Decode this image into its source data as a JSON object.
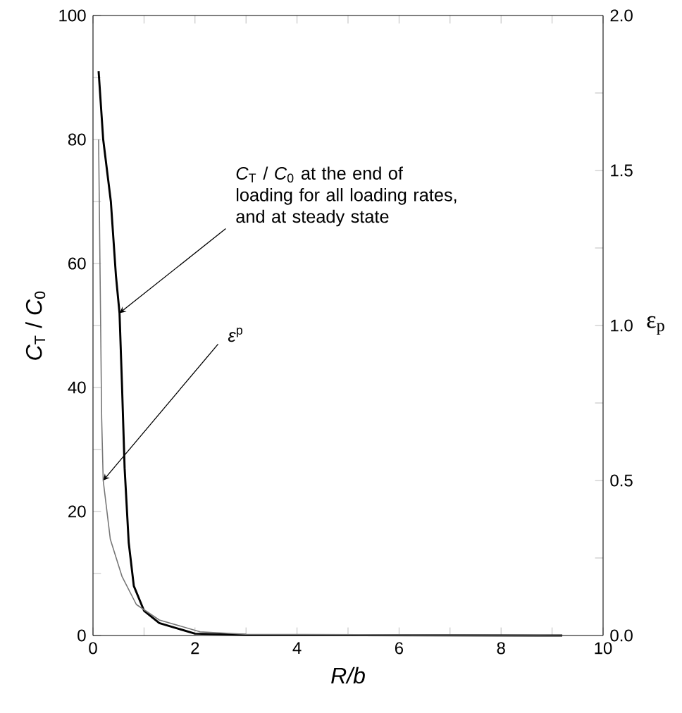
{
  "chart_data": {
    "type": "line",
    "xlabel": "R/b",
    "ylabel": "*C*$_{T}$ / *C*$_{0}$",
    "y2label": "ε$_{p}$",
    "xlim": [
      0,
      10
    ],
    "ylim": [
      0,
      100
    ],
    "y2lim": [
      0,
      2.0
    ],
    "xticks": [
      0,
      {
        "value": 1,
        "label": null
      },
      2,
      {
        "value": 3,
        "label": null
      },
      4,
      {
        "value": 5,
        "label": null
      },
      6,
      {
        "value": 7,
        "label": null
      },
      8,
      {
        "value": 9,
        "label": null
      },
      10
    ],
    "yticks": [
      0,
      {
        "value": 10,
        "label": null
      },
      20,
      {
        "value": 30,
        "label": null
      },
      40,
      {
        "value": 50,
        "label": null
      },
      60,
      {
        "value": 70,
        "label": null
      },
      80,
      {
        "value": 90,
        "label": null
      },
      100
    ],
    "y2ticks": [
      {
        "value": 0,
        "label": "0.0"
      },
      {
        "value": 0.25,
        "label": null
      },
      {
        "value": 0.5,
        "label": "0.5"
      },
      {
        "value": 0.75,
        "label": null
      },
      {
        "value": 1.0,
        "label": "1.0"
      },
      {
        "value": 1.25,
        "label": null
      },
      {
        "value": 1.5,
        "label": "1.5"
      },
      {
        "value": 1.75,
        "label": null
      },
      {
        "value": 2.0,
        "label": "2.0"
      }
    ],
    "marker": "none",
    "line_style": "solid",
    "annotations": [
      {
        "text": "*C*$_{T}$ / *C*$_{0}$ at the end of loading for all loading rates, and at steady state",
        "x": 0.52,
        "y": 52
      },
      {
        "text": "*ε*$^{p}$",
        "x": 0.2,
        "y": 25
      }
    ],
    "series": [
      {
        "color": "#000000",
        "x": [
          0.11,
          0.2,
          0.35,
          0.45,
          0.52,
          0.57,
          0.62,
          0.7,
          0.8,
          1.0,
          1.3,
          2.0,
          3.0,
          9.2
        ],
        "values": [
          91,
          80,
          70,
          58,
          52,
          40,
          27,
          15,
          8,
          4,
          2,
          0.3,
          0.1,
          0
        ]
      },
      {
        "color": "#777777",
        "axis": "y2",
        "x": [
          0.11,
          0.14,
          0.17,
          0.2,
          0.34,
          0.57,
          0.85,
          1.3,
          2.1,
          3.0,
          9.2
        ],
        "values": [
          1.6,
          1.15,
          0.7,
          0.5,
          0.31,
          0.19,
          0.1,
          0.05,
          0.012,
          0.004,
          0
        ]
      }
    ]
  }
}
